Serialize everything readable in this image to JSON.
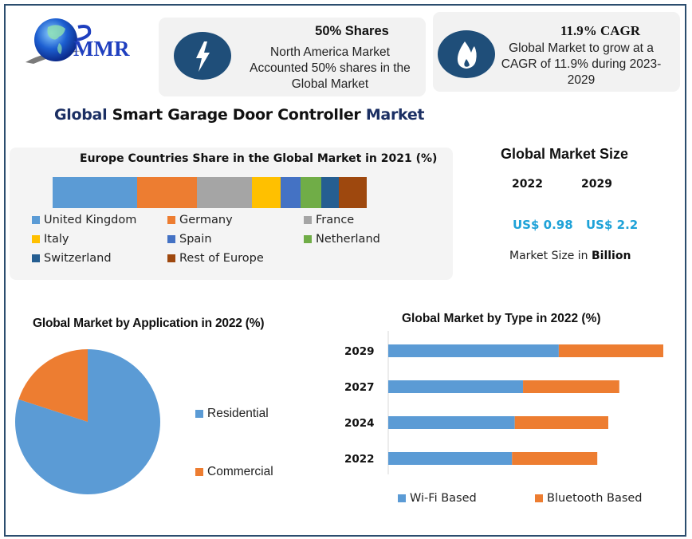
{
  "brand": {
    "logo_text": "MMR"
  },
  "cards": [
    {
      "icon": "lightning-bolt-icon",
      "title": "50% Shares",
      "lines": [
        "North America Market",
        "Accounted 50% shares in the",
        "Global Market"
      ]
    },
    {
      "icon": "flame-icon",
      "title": "11.9% CAGR",
      "lines": [
        "Global Market to grow at a",
        "CAGR of 11.9% during 2023-",
        "2029"
      ]
    }
  ],
  "main_title": {
    "part1": "Global",
    "part2": "Smart Garage Door Controller",
    "part3": "Market"
  },
  "market_size": {
    "title": "Global Market Size",
    "years": [
      "2022",
      "2029"
    ],
    "values": [
      "US$ 0.98",
      "US$ 2.2"
    ],
    "note_prefix": "Market Size in",
    "note_unit": "Billion"
  },
  "colors": {
    "frame": "#2b4d6e",
    "icon_bg": "#1f4e79",
    "value_accent": "#1ea2d8",
    "title_blue": "#1b2f63"
  },
  "chart_data": [
    {
      "type": "bar",
      "orientation": "horizontal-stacked-100",
      "title": "Europe Countries Share in the Global Market in 2021 (%)",
      "categories": [
        "Europe"
      ],
      "series": [
        {
          "name": "United Kingdom",
          "values": [
            27
          ],
          "color": "#5b9bd5"
        },
        {
          "name": "Germany",
          "values": [
            19
          ],
          "color": "#ed7d31"
        },
        {
          "name": "France",
          "values": [
            17.5
          ],
          "color": "#a5a5a5"
        },
        {
          "name": "Italy",
          "values": [
            9
          ],
          "color": "#ffc000"
        },
        {
          "name": "Spain",
          "values": [
            6.5
          ],
          "color": "#4472c4"
        },
        {
          "name": "Netherland",
          "values": [
            6.5
          ],
          "color": "#70ad47"
        },
        {
          "name": "Switzerland",
          "values": [
            5.5
          ],
          "color": "#255e91"
        },
        {
          "name": "Rest of Europe",
          "values": [
            9
          ],
          "color": "#9e480e"
        }
      ],
      "legend": "bottom",
      "grid": false
    },
    {
      "type": "pie",
      "title": "Global Market by Application in 2022 (%)",
      "categories": [
        "Residential",
        "Commercial"
      ],
      "values": [
        80,
        20
      ],
      "colors": [
        "#5b9bd5",
        "#ed7d31"
      ],
      "legend": "right"
    },
    {
      "type": "bar",
      "orientation": "horizontal-stacked",
      "title": "Global Market by Type in 2022 (%)",
      "categories": [
        "2029",
        "2027",
        "2024",
        "2022"
      ],
      "series": [
        {
          "name": "Wi-Fi Based",
          "values": [
            62,
            49,
            46,
            45
          ],
          "color": "#5b9bd5"
        },
        {
          "name": "Bluetooth Based",
          "values": [
            38,
            35,
            34,
            31
          ],
          "color": "#ed7d31"
        }
      ],
      "xlim": [
        0,
        100
      ],
      "legend": "bottom",
      "grid": false
    }
  ]
}
